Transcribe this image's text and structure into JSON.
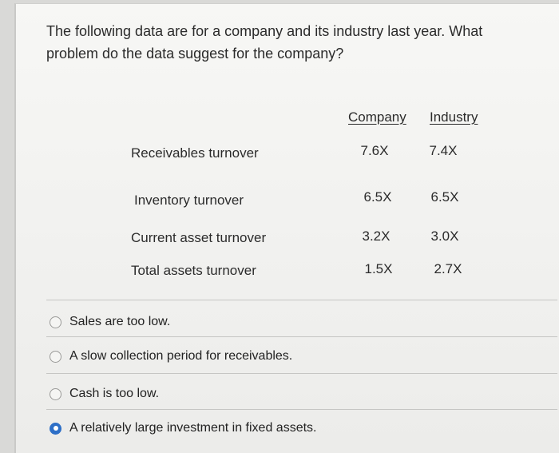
{
  "question": {
    "text": "The following data are for a company and its industry last year. What problem do the data suggest for the company?"
  },
  "table": {
    "headers": {
      "company": "Company",
      "industry": "Industry"
    },
    "rows": [
      {
        "label": "Receivables turnover",
        "company": "7.6X",
        "industry": "7.4X"
      },
      {
        "label": "Inventory turnover",
        "company": "6.5X",
        "industry": "6.5X"
      },
      {
        "label": "Current asset turnover",
        "company": "3.2X",
        "industry": "3.0X"
      },
      {
        "label": "Total assets turnover",
        "company": "1.5X",
        "industry": "2.7X"
      }
    ]
  },
  "options": [
    {
      "label": "Sales are too low.",
      "selected": false
    },
    {
      "label": "A slow collection period for receivables.",
      "selected": false
    },
    {
      "label": "Cash is too low.",
      "selected": false
    },
    {
      "label": "A relatively large investment in fixed assets.",
      "selected": true
    }
  ],
  "colors": {
    "selected_radio": "#2d6fc7",
    "background": "#f3f3f1"
  }
}
